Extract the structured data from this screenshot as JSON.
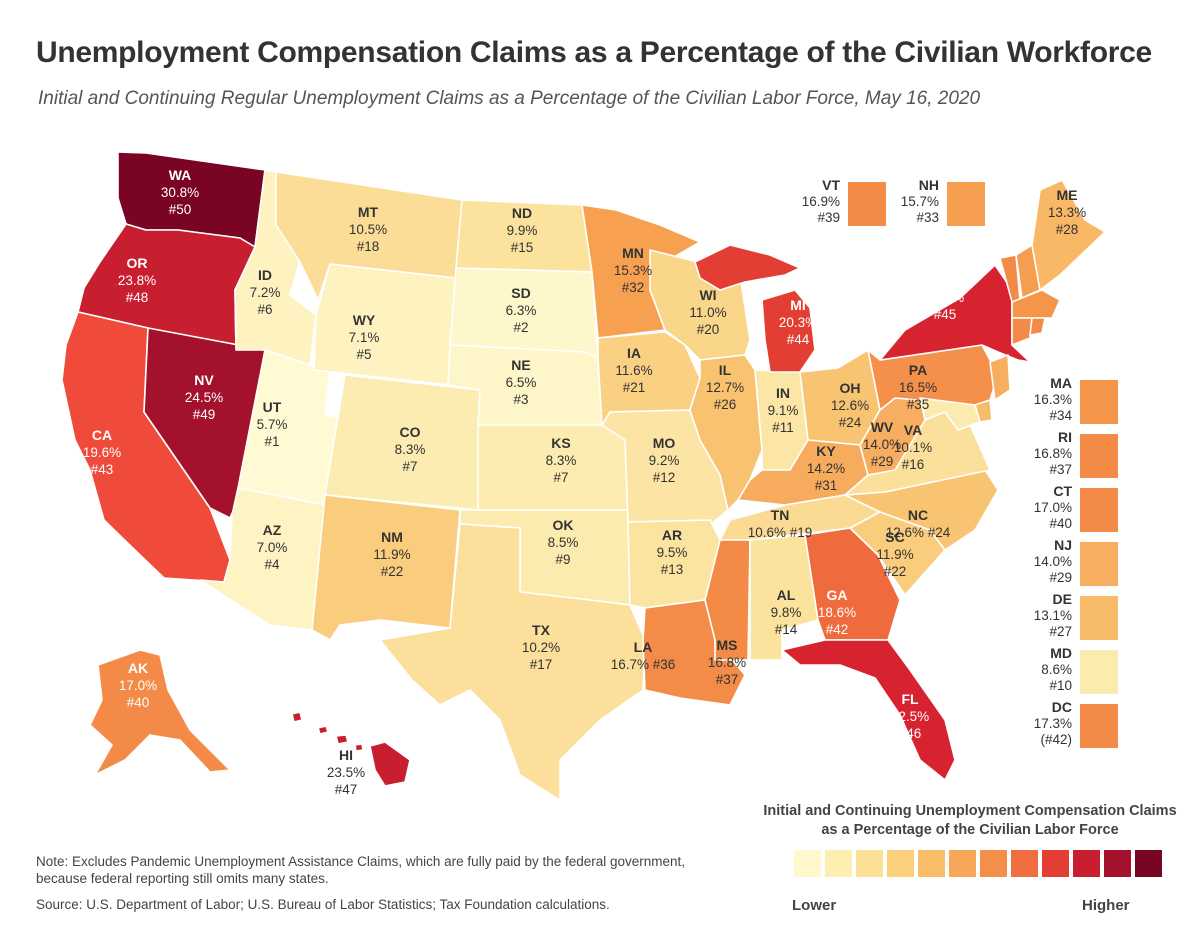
{
  "title": "Unemployment Compensation Claims as a Percentage of the Civilian Workforce",
  "subtitle": "Initial and Continuing Regular Unemployment Claims as a Percentage of the Civilian Labor Force, May 16, 2020",
  "note": "Note: Excludes Pandemic Unemployment Assistance Claims, which are fully paid by the federal government, because federal reporting still omits many states.",
  "source": "Source: U.S. Department of Labor; U.S. Bureau of Labor Statistics; Tax Foundation calculations.",
  "legend": {
    "title": "Initial and Continuing Unemployment Compensation Claims as a Percentage of the Civilian Labor Force",
    "low_label": "Lower",
    "high_label": "Higher",
    "colors": [
      "#fff8cc",
      "#fdefb0",
      "#fbe095",
      "#fad07c",
      "#f8bd67",
      "#f6a757",
      "#f38e4b",
      "#ef6d40",
      "#e33e33",
      "#c81f30",
      "#a3112d",
      "#7a0424"
    ]
  },
  "states": [
    {
      "abbr": "WA",
      "value": "30.8%",
      "rank": "#50",
      "color": "#7a0424",
      "light": true
    },
    {
      "abbr": "OR",
      "value": "23.8%",
      "rank": "#48",
      "color": "#c81f30",
      "light": true
    },
    {
      "abbr": "CA",
      "value": "19.6%",
      "rank": "#43",
      "color": "#ef4a3a",
      "light": true
    },
    {
      "abbr": "NV",
      "value": "24.5%",
      "rank": "#49",
      "color": "#a3112d",
      "light": true
    },
    {
      "abbr": "ID",
      "value": "7.2%",
      "rank": "#6",
      "color": "#fdf2c0",
      "light": false
    },
    {
      "abbr": "UT",
      "value": "5.7%",
      "rank": "#1",
      "color": "#fff9d4",
      "light": false
    },
    {
      "abbr": "AZ",
      "value": "7.0%",
      "rank": "#4",
      "color": "#fdf3c3",
      "light": false
    },
    {
      "abbr": "MT",
      "value": "10.5%",
      "rank": "#18",
      "color": "#fbdd97",
      "light": false
    },
    {
      "abbr": "WY",
      "value": "7.1%",
      "rank": "#5",
      "color": "#fdf2c0",
      "light": false
    },
    {
      "abbr": "CO",
      "value": "8.3%",
      "rank": "#7",
      "color": "#fcecb1",
      "light": false
    },
    {
      "abbr": "NM",
      "value": "11.9%",
      "rank": "#22",
      "color": "#f9cd7d",
      "light": false
    },
    {
      "abbr": "ND",
      "value": "9.9%",
      "rank": "#15",
      "color": "#fbe29d",
      "light": false
    },
    {
      "abbr": "SD",
      "value": "6.3%",
      "rank": "#2",
      "color": "#fef7cc",
      "light": false
    },
    {
      "abbr": "NE",
      "value": "6.5%",
      "rank": "#3",
      "color": "#fef5c8",
      "light": false
    },
    {
      "abbr": "KS",
      "value": "8.3%",
      "rank": "#7",
      "color": "#fcecb1",
      "light": false
    },
    {
      "abbr": "OK",
      "value": "8.5%",
      "rank": "#9",
      "color": "#fcebae",
      "light": false
    },
    {
      "abbr": "TX",
      "value": "10.2%",
      "rank": "#17",
      "color": "#fbdf9a",
      "light": false
    },
    {
      "abbr": "MN",
      "value": "15.3%",
      "rank": "#32",
      "color": "#f6a050",
      "light": false
    },
    {
      "abbr": "IA",
      "value": "11.6%",
      "rank": "#21",
      "color": "#fad183",
      "light": false
    },
    {
      "abbr": "MO",
      "value": "9.2%",
      "rank": "#12",
      "color": "#fce5a4",
      "light": false
    },
    {
      "abbr": "AR",
      "value": "9.5%",
      "rank": "#13",
      "color": "#fbe3a0",
      "light": false
    },
    {
      "abbr": "LA",
      "value": "16.7%",
      "rank": "#36",
      "color": "#f38c48",
      "light": false
    },
    {
      "abbr": "WI",
      "value": "11.0%",
      "rank": "#20",
      "color": "#fad68a",
      "light": false
    },
    {
      "abbr": "IL",
      "value": "12.7%",
      "rank": "#26",
      "color": "#f8c270",
      "light": false
    },
    {
      "abbr": "MI",
      "value": "20.3%",
      "rank": "#44",
      "color": "#e33e33",
      "light": true
    },
    {
      "abbr": "IN",
      "value": "9.1%",
      "rank": "#11",
      "color": "#fce6a6",
      "light": false
    },
    {
      "abbr": "OH",
      "value": "12.6%",
      "rank": "#24",
      "color": "#f8c472",
      "light": false
    },
    {
      "abbr": "KY",
      "value": "14.2%",
      "rank": "#31",
      "color": "#f7ab5c",
      "light": false
    },
    {
      "abbr": "TN",
      "value": "10.6%",
      "rank": "#19",
      "color": "#fbdb94",
      "light": false
    },
    {
      "abbr": "MS",
      "value": "16.8%",
      "rank": "#37",
      "color": "#f38b47",
      "light": false
    },
    {
      "abbr": "AL",
      "value": "9.8%",
      "rank": "#14",
      "color": "#fbe29d",
      "light": false
    },
    {
      "abbr": "GA",
      "value": "18.6%",
      "rank": "#42",
      "color": "#ef6b3e",
      "light": true
    },
    {
      "abbr": "FL",
      "value": "22.5%",
      "rank": "#46",
      "color": "#d6232f",
      "light": true
    },
    {
      "abbr": "SC",
      "value": "11.9%",
      "rank": "#22",
      "color": "#f9cd7d",
      "light": false
    },
    {
      "abbr": "NC",
      "value": "12.6%",
      "rank": "#24",
      "color": "#f8c472",
      "light": false
    },
    {
      "abbr": "VA",
      "value": "10.1%",
      "rank": "#16",
      "color": "#fbe09b",
      "light": false
    },
    {
      "abbr": "WV",
      "value": "14.0%",
      "rank": "#29",
      "color": "#f7ae60",
      "light": false
    },
    {
      "abbr": "PA",
      "value": "16.5%",
      "rank": "#35",
      "color": "#f4904a",
      "light": false
    },
    {
      "abbr": "NY",
      "value": "22.0%",
      "rank": "#45",
      "color": "#d6232f",
      "light": true
    },
    {
      "abbr": "ME",
      "value": "13.3%",
      "rank": "#28",
      "color": "#f8b866",
      "light": false
    },
    {
      "abbr": "AK",
      "value": "17.0%",
      "rank": "#40",
      "color": "#f38a47",
      "light": true
    },
    {
      "abbr": "HI",
      "value": "23.5%",
      "rank": "#47",
      "color": "#c81f30",
      "light": false
    }
  ],
  "small_states": [
    {
      "abbr": "VT",
      "value": "16.9%",
      "rank": "#39",
      "color": "#f38b47"
    },
    {
      "abbr": "NH",
      "value": "15.7%",
      "rank": "#33",
      "color": "#f59e50"
    },
    {
      "abbr": "MA",
      "value": "16.3%",
      "rank": "#34",
      "color": "#f49549"
    },
    {
      "abbr": "RI",
      "value": "16.8%",
      "rank": "#37",
      "color": "#f38b47"
    },
    {
      "abbr": "CT",
      "value": "17.0%",
      "rank": "#40",
      "color": "#f38a47"
    },
    {
      "abbr": "NJ",
      "value": "14.0%",
      "rank": "#29",
      "color": "#f7ae60"
    },
    {
      "abbr": "DE",
      "value": "13.1%",
      "rank": "#27",
      "color": "#f8bb69"
    },
    {
      "abbr": "MD",
      "value": "8.6%",
      "rank": "#10",
      "color": "#fcebaf"
    },
    {
      "abbr": "DC",
      "value": "17.3%",
      "rank": "(#42)",
      "color": "#f38a47"
    }
  ]
}
